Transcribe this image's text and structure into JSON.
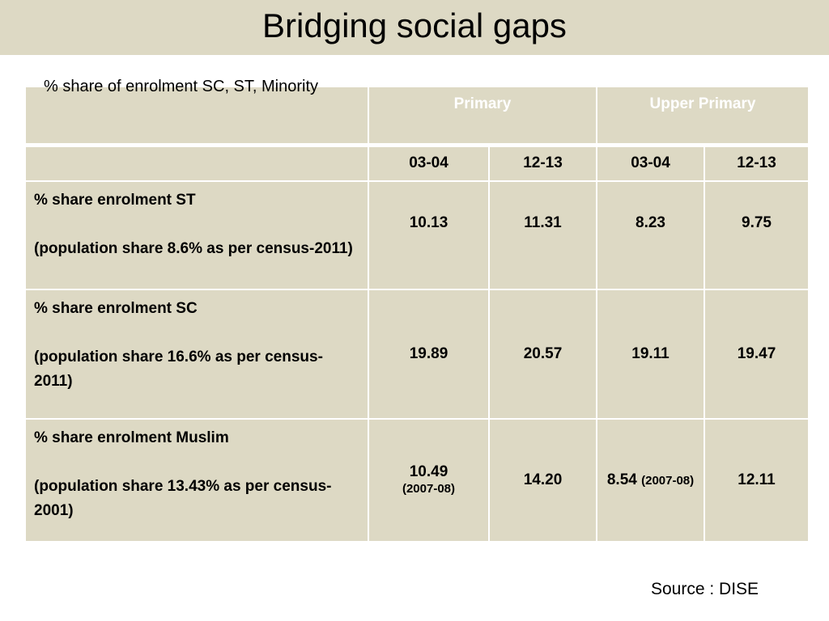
{
  "title": "Bridging social gaps",
  "subtitle": "% share of enrolment SC, ST, Minority",
  "table": {
    "groups": [
      "Primary",
      "Upper Primary"
    ],
    "years": [
      "03-04",
      "12-13",
      "03-04",
      "12-13"
    ],
    "rows": [
      {
        "label": "% share enrolment ST",
        "note": "(population share 8.6% as per census-2011)",
        "values": [
          "10.13",
          "11.31",
          "8.23",
          "9.75"
        ]
      },
      {
        "label": "% share enrolment SC",
        "note": "(population share 16.6% as per census-2011)",
        "values": [
          "19.89",
          "20.57",
          "19.11",
          "19.47"
        ]
      },
      {
        "label": "% share enrolment Muslim",
        "note": "(population share 13.43% as per census-2001)",
        "values": [
          "10.49",
          "14.20",
          "8.54",
          "12.11"
        ],
        "value_notes": [
          "(2007-08)",
          "",
          "(2007-08)",
          ""
        ]
      }
    ]
  },
  "source": "Source : DISE"
}
